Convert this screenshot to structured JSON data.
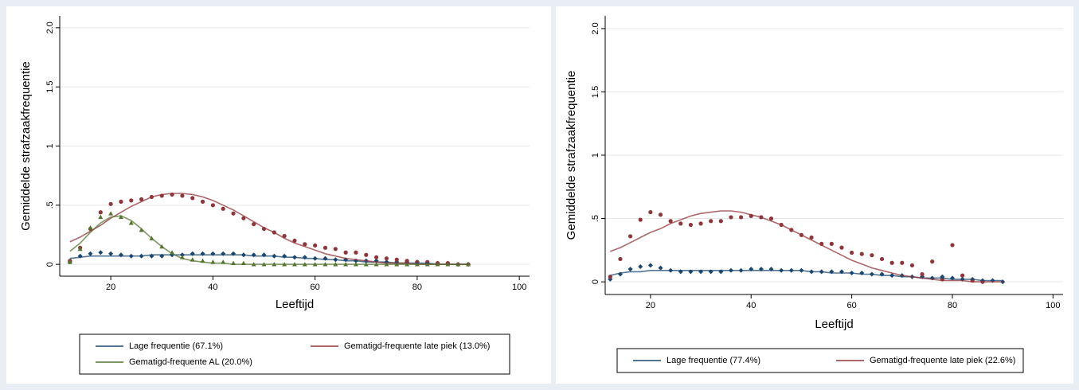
{
  "chart_data": [
    {
      "type": "line",
      "y_label": "Gemiddelde strafzaakfrequentie",
      "x_label": "Leeftijd",
      "xlim": [
        10,
        102
      ],
      "ylim": [
        -0.1,
        2.1
      ],
      "xticks": [
        20,
        40,
        60,
        80,
        100
      ],
      "yticks": [
        0,
        {
          "value": 0.5,
          "label": ".5"
        },
        1,
        1.5,
        {
          "value": 2,
          "label": "2.0"
        }
      ],
      "grid": true,
      "x": [
        12,
        14,
        16,
        18,
        20,
        22,
        24,
        26,
        28,
        30,
        32,
        34,
        36,
        38,
        40,
        42,
        44,
        46,
        48,
        50,
        52,
        54,
        56,
        58,
        60,
        62,
        64,
        66,
        68,
        70,
        72,
        74,
        76,
        78,
        80,
        82,
        84,
        86,
        88,
        90
      ],
      "series": [
        {
          "name": "Lage frequentie (67.1%)",
          "color": "#1a476f",
          "marker": "diamond",
          "values": [
            0.05,
            0.06,
            0.07,
            0.07,
            0.07,
            0.07,
            0.07,
            0.07,
            0.08,
            0.08,
            0.08,
            0.08,
            0.08,
            0.08,
            0.08,
            0.08,
            0.08,
            0.08,
            0.07,
            0.07,
            0.07,
            0.06,
            0.06,
            0.05,
            0.05,
            0.04,
            0.04,
            0.03,
            0.03,
            0.02,
            0.02,
            0.02,
            0.01,
            0.01,
            0.01,
            0.01,
            0,
            0,
            0,
            0
          ],
          "observed": [
            0.02,
            0.07,
            0.09,
            0.1,
            0.09,
            0.08,
            0.07,
            0.07,
            0.07,
            0.07,
            0.08,
            0.08,
            0.09,
            0.09,
            0.09,
            0.09,
            0.09,
            0.08,
            0.08,
            0.08,
            0.07,
            0.07,
            0.06,
            0.06,
            0.05,
            0.05,
            0.04,
            0.04,
            0.03,
            0.03,
            0.03,
            0.02,
            0.02,
            0.02,
            0.02,
            0.01,
            0.01,
            0.01,
            0,
            0
          ]
        },
        {
          "name": "Gematigd-frequente late piek (13.0%)",
          "color": "#90353b",
          "marker": "circle",
          "values": [
            0.19,
            0.23,
            0.28,
            0.33,
            0.39,
            0.44,
            0.49,
            0.53,
            0.57,
            0.59,
            0.6,
            0.6,
            0.59,
            0.57,
            0.54,
            0.5,
            0.46,
            0.41,
            0.36,
            0.31,
            0.27,
            0.22,
            0.18,
            0.15,
            0.12,
            0.09,
            0.07,
            0.05,
            0.04,
            0.03,
            0.02,
            0.01,
            0.01,
            0.01,
            0,
            0,
            0,
            0,
            0,
            0
          ],
          "observed": [
            0.03,
            0.14,
            0.3,
            0.44,
            0.51,
            0.53,
            0.54,
            0.55,
            0.57,
            0.58,
            0.59,
            0.58,
            0.56,
            0.53,
            0.5,
            0.47,
            0.43,
            0.39,
            0.34,
            0.3,
            0.27,
            0.24,
            0.2,
            0.17,
            0.16,
            0.14,
            0.13,
            0.1,
            0.1,
            0.08,
            0.06,
            0.05,
            0.04,
            0.03,
            0.02,
            0.02,
            0.01,
            0.01,
            0,
            0
          ]
        },
        {
          "name": "Gematigd-frequente AL (20.0%)",
          "color": "#55752f",
          "marker": "triangle",
          "values": [
            0.11,
            0.18,
            0.27,
            0.35,
            0.4,
            0.41,
            0.37,
            0.3,
            0.22,
            0.15,
            0.09,
            0.05,
            0.03,
            0.02,
            0.01,
            0.01,
            0,
            0,
            0,
            0,
            0,
            0,
            0,
            0,
            0,
            0,
            0,
            0,
            0,
            0,
            0,
            0,
            0,
            0,
            0,
            0,
            0,
            0,
            0,
            0
          ],
          "observed": [
            0.02,
            0.13,
            0.31,
            0.4,
            0.43,
            0.4,
            0.35,
            0.29,
            0.22,
            0.15,
            0.1,
            0.06,
            0.04,
            0.03,
            0.02,
            0.02,
            0.01,
            0.01,
            0,
            0,
            0,
            0,
            0,
            0,
            0,
            0,
            0,
            0,
            0,
            0,
            0,
            0,
            0,
            0,
            0,
            0,
            0,
            0,
            0,
            0
          ]
        }
      ]
    },
    {
      "type": "line",
      "y_label": "Gemiddelde strafzaakfrequentie",
      "x_label": "Leeftijd",
      "xlim": [
        11,
        102
      ],
      "ylim": [
        -0.1,
        2.1
      ],
      "xticks": [
        20,
        40,
        60,
        80,
        100
      ],
      "yticks": [
        0,
        {
          "value": 0.5,
          "label": ".5"
        },
        1,
        1.5,
        {
          "value": 2,
          "label": "2.0"
        }
      ],
      "grid": true,
      "x": [
        12,
        14,
        16,
        18,
        20,
        22,
        24,
        26,
        28,
        30,
        32,
        34,
        36,
        38,
        40,
        42,
        44,
        46,
        48,
        50,
        52,
        54,
        56,
        58,
        60,
        62,
        64,
        66,
        68,
        70,
        72,
        74,
        76,
        78,
        80,
        82,
        84,
        86,
        88,
        90
      ],
      "series": [
        {
          "name": "Lage frequentie (77.4%)",
          "color": "#1a476f",
          "marker": "diamond",
          "values": [
            0.05,
            0.07,
            0.08,
            0.08,
            0.09,
            0.09,
            0.09,
            0.09,
            0.09,
            0.09,
            0.09,
            0.09,
            0.09,
            0.09,
            0.09,
            0.09,
            0.09,
            0.09,
            0.09,
            0.09,
            0.08,
            0.08,
            0.07,
            0.07,
            0.07,
            0.06,
            0.06,
            0.05,
            0.05,
            0.04,
            0.04,
            0.03,
            0.03,
            0.03,
            0.02,
            0.02,
            0.02,
            0.01,
            0.01,
            0.01
          ],
          "observed": [
            0.02,
            0.06,
            0.1,
            0.12,
            0.13,
            0.11,
            0.09,
            0.08,
            0.08,
            0.08,
            0.08,
            0.08,
            0.09,
            0.09,
            0.1,
            0.1,
            0.1,
            0.09,
            0.09,
            0.09,
            0.08,
            0.08,
            0.08,
            0.08,
            0.07,
            0.07,
            0.06,
            0.06,
            0.05,
            0.05,
            0.04,
            0.04,
            0.03,
            0.04,
            0.03,
            0.02,
            0.02,
            0.01,
            0.01,
            0
          ]
        },
        {
          "name": "Gematigd-frequente late piek (22.6%)",
          "color": "#90353b",
          "marker": "circle",
          "values": [
            0.24,
            0.27,
            0.31,
            0.35,
            0.39,
            0.42,
            0.46,
            0.49,
            0.52,
            0.54,
            0.55,
            0.56,
            0.56,
            0.55,
            0.53,
            0.51,
            0.48,
            0.45,
            0.41,
            0.37,
            0.33,
            0.29,
            0.25,
            0.21,
            0.17,
            0.14,
            0.11,
            0.09,
            0.07,
            0.05,
            0.04,
            0.03,
            0.02,
            0.01,
            0.01,
            0.01,
            0,
            0,
            0,
            0
          ],
          "observed": [
            0.04,
            0.18,
            0.36,
            0.49,
            0.55,
            0.53,
            0.48,
            0.46,
            0.45,
            0.46,
            0.48,
            0.48,
            0.51,
            0.51,
            0.52,
            0.51,
            0.5,
            0.45,
            0.41,
            0.37,
            0.35,
            0.3,
            0.3,
            0.27,
            0.23,
            0.22,
            0.21,
            0.18,
            0.15,
            0.15,
            0.13,
            0.06,
            0.16,
            0.02,
            0.29,
            0.05,
            0.01,
            0,
            null,
            null
          ]
        }
      ]
    }
  ]
}
